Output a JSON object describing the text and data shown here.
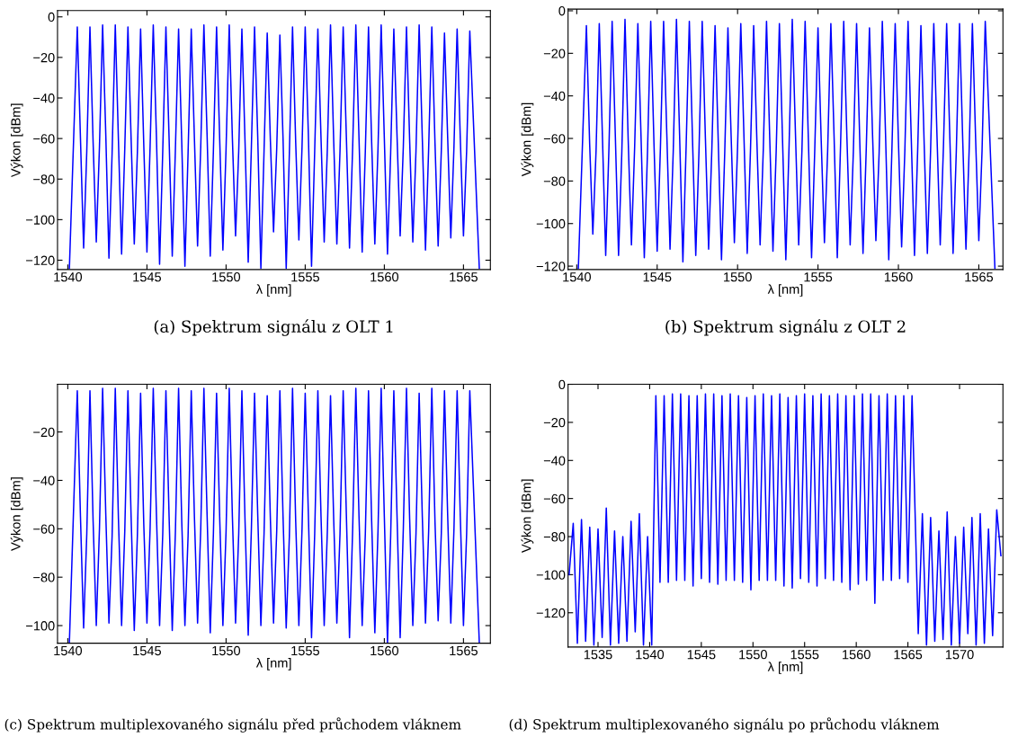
{
  "chart_data": [
    {
      "type": "line",
      "xlabel": "λ [nm]",
      "ylabel": "Výkon [dBm]",
      "annotations": [
        "(a) Spektrum signálu z OLT 1"
      ],
      "xlim": [
        1539.35,
        1566.7
      ],
      "ylim": [
        -124.6,
        3.1
      ],
      "xticks": [
        1540,
        1545,
        1550,
        1555,
        1560,
        1565
      ],
      "yticks": [
        -120,
        -100,
        -80,
        -60,
        -40,
        -20,
        0
      ],
      "grid": false,
      "x": [
        1540.1,
        1540.6,
        1540.8,
        1541.0,
        1541.2,
        1541.4,
        1541.6,
        1541.8,
        1542.0,
        1542.2,
        1542.4,
        1542.6,
        1542.8,
        1543.0,
        1543.2,
        1543.4,
        1543.6,
        1543.8,
        1544.0,
        1544.2,
        1544.4,
        1544.6,
        1544.8,
        1545.0,
        1545.2,
        1545.4,
        1545.6,
        1545.8,
        1546.0,
        1546.2,
        1546.4,
        1546.6,
        1546.8,
        1547.0,
        1547.2,
        1547.4,
        1547.6,
        1547.8,
        1548.0,
        1548.2,
        1548.4,
        1548.6,
        1548.8,
        1549.0,
        1549.2,
        1549.4,
        1549.6,
        1549.8,
        1550.0,
        1550.2,
        1550.4,
        1550.6,
        1550.8,
        1551.0,
        1551.2,
        1551.4,
        1551.6,
        1551.8,
        1552.0,
        1552.2,
        1552.4,
        1552.6,
        1552.8,
        1553.0,
        1553.2,
        1553.4,
        1553.6,
        1553.8,
        1554.0,
        1554.2,
        1554.4,
        1554.6,
        1554.8,
        1555.0,
        1555.2,
        1555.4,
        1555.6,
        1555.8,
        1556.0,
        1556.2,
        1556.4,
        1556.6,
        1556.8,
        1557.0,
        1557.2,
        1557.4,
        1557.6,
        1557.8,
        1558.0,
        1558.2,
        1558.4,
        1558.6,
        1558.8,
        1559.0,
        1559.2,
        1559.4,
        1559.6,
        1559.8,
        1560.0,
        1560.2,
        1560.4,
        1560.6,
        1560.8,
        1561.0,
        1561.2,
        1561.4,
        1561.6,
        1561.8,
        1562.0,
        1562.2,
        1562.4,
        1562.6,
        1562.8,
        1563.0,
        1563.2,
        1563.4,
        1563.6,
        1563.8,
        1564.0,
        1564.2,
        1564.4,
        1564.6,
        1564.8,
        1565.0,
        1565.2,
        1565.4,
        1566.0
      ],
      "series": [
        {
          "color": "#0000ff",
          "values": [
            -124,
            -5,
            -60,
            -114,
            -66,
            -5,
            -62,
            -111,
            -64,
            -4,
            -58,
            -119,
            -67,
            -4,
            -61,
            -117,
            -65,
            -5,
            -60,
            -112,
            -66,
            -6,
            -63,
            -116,
            -64,
            -4,
            -59,
            -122,
            -66,
            -5,
            -60,
            -118,
            -65,
            -6,
            -62,
            -123,
            -67,
            -6,
            -60,
            -113,
            -64,
            -4,
            -58,
            -118,
            -66,
            -5,
            -61,
            -115,
            -65,
            -4,
            -60,
            -108,
            -66,
            -6,
            -62,
            -121,
            -64,
            -5,
            -59,
            -124,
            -66,
            -8,
            -61,
            -106,
            -65,
            -9,
            -60,
            -124,
            -67,
            -5,
            -62,
            -110,
            -64,
            -5,
            -58,
            -123,
            -66,
            -6,
            -60,
            -111,
            -65,
            -4,
            -61,
            -112,
            -66,
            -5,
            -59,
            -114,
            -64,
            -4,
            -60,
            -116,
            -66,
            -5,
            -62,
            -112,
            -65,
            -4,
            -60,
            -117,
            -67,
            -6,
            -58,
            -108,
            -64,
            -5,
            -61,
            -111,
            -66,
            -4,
            -60,
            -115,
            -65,
            -5,
            -62,
            -113,
            -66,
            -8,
            -59,
            -109,
            -64,
            -6,
            -60,
            -108,
            -66,
            -7,
            -124
          ]
        }
      ]
    },
    {
      "type": "line",
      "xlabel": "λ [nm]",
      "ylabel": "Výkon [dBm]",
      "annotations": [
        "(b) Spektrum signálu z OLT 2"
      ],
      "xlim": [
        1539.46,
        1566.5
      ],
      "ylim": [
        -121.6,
        0.8
      ],
      "xticks": [
        1540,
        1545,
        1550,
        1555,
        1560,
        1565
      ],
      "yticks": [
        -120,
        -100,
        -80,
        -60,
        -40,
        -20,
        0
      ],
      "grid": false,
      "x": [
        1540.1,
        1540.6,
        1540.8,
        1541.0,
        1541.2,
        1541.4,
        1541.6,
        1541.8,
        1542.0,
        1542.2,
        1542.4,
        1542.6,
        1542.8,
        1543.0,
        1543.2,
        1543.4,
        1543.6,
        1543.8,
        1544.0,
        1544.2,
        1544.4,
        1544.6,
        1544.8,
        1545.0,
        1545.2,
        1545.4,
        1545.6,
        1545.8,
        1546.0,
        1546.2,
        1546.4,
        1546.6,
        1546.8,
        1547.0,
        1547.2,
        1547.4,
        1547.6,
        1547.8,
        1548.0,
        1548.2,
        1548.4,
        1548.6,
        1548.8,
        1549.0,
        1549.2,
        1549.4,
        1549.6,
        1549.8,
        1550.0,
        1550.2,
        1550.4,
        1550.6,
        1550.8,
        1551.0,
        1551.2,
        1551.4,
        1551.6,
        1551.8,
        1552.0,
        1552.2,
        1552.4,
        1552.6,
        1552.8,
        1553.0,
        1553.2,
        1553.4,
        1553.6,
        1553.8,
        1554.0,
        1554.2,
        1554.4,
        1554.6,
        1554.8,
        1555.0,
        1555.2,
        1555.4,
        1555.6,
        1555.8,
        1556.0,
        1556.2,
        1556.4,
        1556.6,
        1556.8,
        1557.0,
        1557.2,
        1557.4,
        1557.6,
        1557.8,
        1558.0,
        1558.2,
        1558.4,
        1558.6,
        1558.8,
        1559.0,
        1559.2,
        1559.4,
        1559.6,
        1559.8,
        1560.0,
        1560.2,
        1560.4,
        1560.6,
        1560.8,
        1561.0,
        1561.2,
        1561.4,
        1561.6,
        1561.8,
        1562.0,
        1562.2,
        1562.4,
        1562.6,
        1562.8,
        1563.0,
        1563.2,
        1563.4,
        1563.6,
        1563.8,
        1564.0,
        1564.2,
        1564.4,
        1564.6,
        1564.8,
        1565.0,
        1565.2,
        1565.4,
        1566.0
      ],
      "series": [
        {
          "color": "#0000ff",
          "values": [
            -121,
            -7,
            -62,
            -105,
            -66,
            -6,
            -60,
            -115,
            -65,
            -5,
            -59,
            -115,
            -67,
            -4,
            -61,
            -110,
            -64,
            -6,
            -60,
            -116,
            -66,
            -5,
            -62,
            -113,
            -65,
            -5,
            -58,
            -112,
            -66,
            -4,
            -60,
            -118,
            -64,
            -5,
            -61,
            -115,
            -66,
            -5,
            -60,
            -112,
            -65,
            -7,
            -62,
            -117,
            -67,
            -8,
            -59,
            -109,
            -64,
            -6,
            -60,
            -114,
            -66,
            -7,
            -61,
            -110,
            -65,
            -5,
            -60,
            -113,
            -66,
            -6,
            -62,
            -117,
            -64,
            -4,
            -58,
            -110,
            -66,
            -5,
            -60,
            -116,
            -65,
            -8,
            -61,
            -109,
            -66,
            -6,
            -59,
            -116,
            -64,
            -5,
            -60,
            -110,
            -66,
            -6,
            -62,
            -114,
            -65,
            -8,
            -60,
            -108,
            -67,
            -5,
            -58,
            -117,
            -64,
            -6,
            -61,
            -111,
            -66,
            -5,
            -60,
            -115,
            -65,
            -7,
            -62,
            -114,
            -66,
            -6,
            -59,
            -110,
            -64,
            -6,
            -60,
            -114,
            -66,
            -6,
            -61,
            -112,
            -65,
            -6,
            -60,
            -108,
            -66,
            -5,
            -121
          ]
        }
      ]
    },
    {
      "type": "line",
      "xlabel": "λ [nm]",
      "ylabel": "Výkon [dBm]",
      "annotations": [
        "(c) Spektrum multiplexovaného signálu před průchodem vláknem"
      ],
      "xlim": [
        1539.35,
        1566.7
      ],
      "ylim": [
        -107.3,
        -0.3
      ],
      "xticks": [
        1540,
        1545,
        1550,
        1555,
        1560,
        1565
      ],
      "yticks": [
        -100,
        -80,
        -60,
        -40,
        -20
      ],
      "grid": false,
      "x": [
        1540.1,
        1540.6,
        1540.8,
        1541.0,
        1541.2,
        1541.4,
        1541.6,
        1541.8,
        1542.0,
        1542.2,
        1542.4,
        1542.6,
        1542.8,
        1543.0,
        1543.2,
        1543.4,
        1543.6,
        1543.8,
        1544.0,
        1544.2,
        1544.4,
        1544.6,
        1544.8,
        1545.0,
        1545.2,
        1545.4,
        1545.6,
        1545.8,
        1546.0,
        1546.2,
        1546.4,
        1546.6,
        1546.8,
        1547.0,
        1547.2,
        1547.4,
        1547.6,
        1547.8,
        1548.0,
        1548.2,
        1548.4,
        1548.6,
        1548.8,
        1549.0,
        1549.2,
        1549.4,
        1549.6,
        1549.8,
        1550.0,
        1550.2,
        1550.4,
        1550.6,
        1550.8,
        1551.0,
        1551.2,
        1551.4,
        1551.6,
        1551.8,
        1552.0,
        1552.2,
        1552.4,
        1552.6,
        1552.8,
        1553.0,
        1553.2,
        1553.4,
        1553.6,
        1553.8,
        1554.0,
        1554.2,
        1554.4,
        1554.6,
        1554.8,
        1555.0,
        1555.2,
        1555.4,
        1555.6,
        1555.8,
        1556.0,
        1556.2,
        1556.4,
        1556.6,
        1556.8,
        1557.0,
        1557.2,
        1557.4,
        1557.6,
        1557.8,
        1558.0,
        1558.2,
        1558.4,
        1558.6,
        1558.8,
        1559.0,
        1559.2,
        1559.4,
        1559.6,
        1559.8,
        1560.0,
        1560.2,
        1560.4,
        1560.6,
        1560.8,
        1561.0,
        1561.2,
        1561.4,
        1561.6,
        1561.8,
        1562.0,
        1562.2,
        1562.4,
        1562.6,
        1562.8,
        1563.0,
        1563.2,
        1563.4,
        1563.6,
        1563.8,
        1564.0,
        1564.2,
        1564.4,
        1564.6,
        1564.8,
        1565.0,
        1565.2,
        1565.4,
        1566.0
      ],
      "series": [
        {
          "color": "#0000ff",
          "values": [
            -107,
            -3,
            -55,
            -101,
            -62,
            -3,
            -57,
            -100,
            -60,
            -2,
            -54,
            -99,
            -63,
            -2,
            -56,
            -100,
            -61,
            -3,
            -55,
            -102,
            -62,
            -4,
            -58,
            -99,
            -60,
            -2,
            -54,
            -100,
            -62,
            -3,
            -55,
            -102,
            -61,
            -2,
            -57,
            -100,
            -63,
            -3,
            -55,
            -99,
            -60,
            -2,
            -54,
            -103,
            -62,
            -4,
            -56,
            -100,
            -61,
            -2,
            -55,
            -99,
            -62,
            -3,
            -57,
            -104,
            -60,
            -4,
            -54,
            -100,
            -62,
            -5,
            -56,
            -99,
            -61,
            -3,
            -55,
            -101,
            -63,
            -2,
            -57,
            -100,
            -60,
            -4,
            -54,
            -105,
            -62,
            -3,
            -55,
            -100,
            -61,
            -5,
            -56,
            -99,
            -62,
            -3,
            -54,
            -105,
            -60,
            -2,
            -55,
            -100,
            -62,
            -3,
            -57,
            -103,
            -61,
            -2,
            -55,
            -107,
            -63,
            -3,
            -54,
            -105,
            -60,
            -2,
            -56,
            -100,
            -62,
            -4,
            -55,
            -99,
            -61,
            -2,
            -57,
            -98,
            -62,
            -3,
            -54,
            -99,
            -60,
            -3,
            -55,
            -100,
            -62,
            -3,
            -107
          ]
        }
      ]
    },
    {
      "type": "line",
      "xlabel": "λ [nm]",
      "ylabel": "Výkon [dBm]",
      "annotations": [
        "(d) Spektrum multiplexovaného signálu po průchodu vláknem"
      ],
      "xlim": [
        1532.1,
        1574.2
      ],
      "ylim": [
        -138,
        0
      ],
      "xticks": [
        1535,
        1540,
        1545,
        1550,
        1555,
        1560,
        1565,
        1570
      ],
      "yticks": [
        -120,
        -100,
        -80,
        -60,
        -40,
        -20,
        0
      ],
      "grid": false,
      "x": [
        1532.2,
        1532.6,
        1533.0,
        1533.4,
        1533.8,
        1534.2,
        1534.6,
        1535.0,
        1535.4,
        1535.8,
        1536.2,
        1536.6,
        1537.0,
        1537.4,
        1537.8,
        1538.2,
        1538.6,
        1539.0,
        1539.4,
        1539.8,
        1540.2,
        1540.6,
        1541.0,
        1541.4,
        1541.8,
        1542.2,
        1542.6,
        1543.0,
        1543.4,
        1543.8,
        1544.2,
        1544.6,
        1545.0,
        1545.4,
        1545.8,
        1546.2,
        1546.6,
        1547.0,
        1547.4,
        1547.8,
        1548.2,
        1548.6,
        1549.0,
        1549.4,
        1549.8,
        1550.2,
        1550.6,
        1551.0,
        1551.4,
        1551.8,
        1552.2,
        1552.6,
        1553.0,
        1553.4,
        1553.8,
        1554.2,
        1554.6,
        1555.0,
        1555.4,
        1555.8,
        1556.2,
        1556.6,
        1557.0,
        1557.4,
        1557.8,
        1558.2,
        1558.6,
        1559.0,
        1559.4,
        1559.8,
        1560.2,
        1560.6,
        1561.0,
        1561.4,
        1561.8,
        1562.2,
        1562.6,
        1563.0,
        1563.4,
        1563.8,
        1564.2,
        1564.6,
        1565.0,
        1565.4,
        1566.0,
        1566.4,
        1566.8,
        1567.2,
        1567.6,
        1568.0,
        1568.4,
        1568.8,
        1569.2,
        1569.6,
        1570.0,
        1570.4,
        1570.8,
        1571.2,
        1571.6,
        1572.0,
        1572.4,
        1572.8,
        1573.2,
        1573.6,
        1574.0
      ],
      "series": [
        {
          "color": "#0000ff",
          "values": [
            -100,
            -73,
            -136,
            -71,
            -135,
            -75,
            -137,
            -76,
            -133,
            -65,
            -137,
            -77,
            -136,
            -80,
            -135,
            -72,
            -130,
            -68,
            -137,
            -80,
            -137,
            -6,
            -104,
            -6,
            -104,
            -5,
            -103,
            -5,
            -103,
            -6,
            -106,
            -6,
            -102,
            -5,
            -104,
            -5,
            -105,
            -6,
            -103,
            -5,
            -103,
            -6,
            -104,
            -7,
            -108,
            -6,
            -103,
            -5,
            -103,
            -6,
            -103,
            -5,
            -106,
            -7,
            -107,
            -6,
            -102,
            -5,
            -104,
            -6,
            -106,
            -5,
            -102,
            -6,
            -103,
            -5,
            -104,
            -6,
            -108,
            -6,
            -105,
            -5,
            -103,
            -5,
            -115,
            -6,
            -103,
            -5,
            -103,
            -6,
            -102,
            -6,
            -104,
            -6,
            -131,
            -68,
            -137,
            -70,
            -135,
            -77,
            -134,
            -67,
            -137,
            -80,
            -136,
            -75,
            -131,
            -70,
            -137,
            -68,
            -136,
            -76,
            -132,
            -66,
            -90
          ]
        }
      ]
    }
  ]
}
